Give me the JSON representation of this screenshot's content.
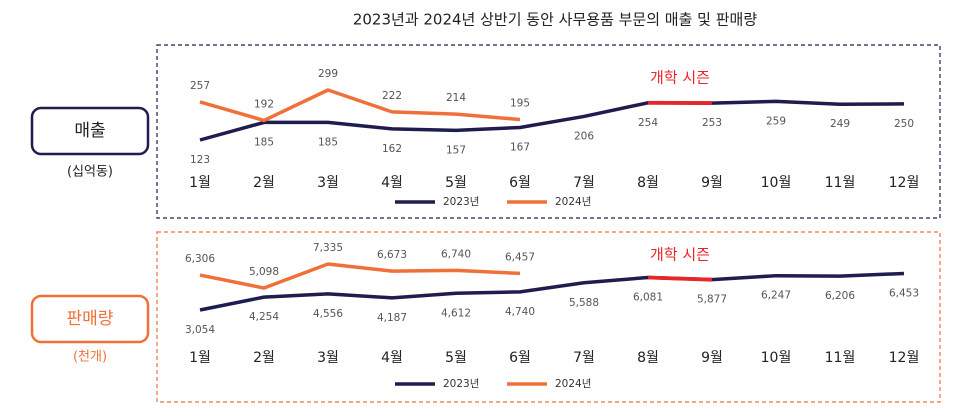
{
  "title": "2023년과 2024년 상반기 동안 사무용품 부문의 매출 및 판매량",
  "chart_data": [
    {
      "type": "line",
      "panel_label": "매출",
      "unit_label": "(십억동)",
      "categories": [
        "1월",
        "2월",
        "3월",
        "4월",
        "5월",
        "6월",
        "7월",
        "8월",
        "9월",
        "10월",
        "11월",
        "12월"
      ],
      "series": [
        {
          "name": "2023년",
          "color": "#1f1d4f",
          "values": [
            123,
            185,
            185,
            162,
            157,
            167,
            206,
            254,
            253,
            259,
            249,
            250
          ]
        },
        {
          "name": "2024년",
          "color": "#f0703a",
          "values": [
            257,
            192,
            299,
            222,
            214,
            195,
            null,
            null,
            null,
            null,
            null,
            null
          ]
        }
      ],
      "annotation": {
        "text": "개학 시즌",
        "from": "8월",
        "to": "9월",
        "color": "#e8262a"
      },
      "legend": "bottom"
    },
    {
      "type": "line",
      "panel_label": "판매량",
      "unit_label": "(천개)",
      "categories": [
        "1월",
        "2월",
        "3월",
        "4월",
        "5월",
        "6월",
        "7월",
        "8월",
        "9월",
        "10월",
        "11월",
        "12월"
      ],
      "series": [
        {
          "name": "2023년",
          "color": "#1f1d4f",
          "values": [
            3054,
            4254,
            4556,
            4187,
            4612,
            4740,
            5588,
            6081,
            5877,
            6247,
            6206,
            6453
          ],
          "value_labels": [
            "3,054",
            "4,254",
            "4,556",
            "4,187",
            "4,612",
            "4,740",
            "5,588",
            "6,081",
            "5,877",
            "6,247",
            "6,206",
            "6,453"
          ]
        },
        {
          "name": "2024년",
          "color": "#f0703a",
          "values": [
            6306,
            5098,
            7335,
            6673,
            6740,
            6457,
            null,
            null,
            null,
            null,
            null,
            null
          ],
          "value_labels": [
            "6,306",
            "5,098",
            "7,335",
            "6,673",
            "6,740",
            "6,457",
            null,
            null,
            null,
            null,
            null,
            null
          ]
        }
      ],
      "annotation": {
        "text": "개학 시즌",
        "from": "8월",
        "to": "9월",
        "color": "#e8262a"
      },
      "legend": "bottom"
    }
  ]
}
